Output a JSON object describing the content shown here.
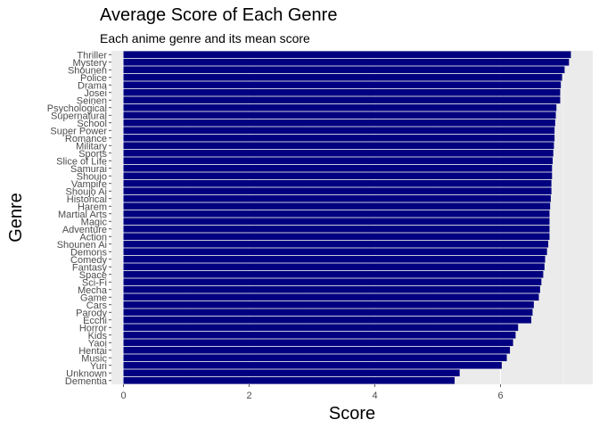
{
  "chart_data": {
    "type": "bar",
    "orientation": "horizontal",
    "title": "Average Score of Each Genre",
    "subtitle": "Each anime genre and its mean score",
    "xlabel": "Score",
    "ylabel": "Genre",
    "xlim": [
      0,
      7.4
    ],
    "xticks": [
      0,
      2,
      4,
      6
    ],
    "grid": true,
    "bar_color": "#000080",
    "panel_color": "#ebebeb",
    "categories": [
      "Thriller",
      "Mystery",
      "Shounen",
      "Police",
      "Drama",
      "Josei",
      "Seinen",
      "Psychological",
      "Supernatural",
      "School",
      "Super Power",
      "Romance",
      "Military",
      "Sports",
      "Slice of Life",
      "Samurai",
      "Shoujo",
      "Vampire",
      "Shoujo Ai",
      "Historical",
      "Harem",
      "Martial Arts",
      "Magic",
      "Adventure",
      "Action",
      "Shounen Ai",
      "Demons",
      "Comedy",
      "Fantasy",
      "Space",
      "Sci-Fi",
      "Mecha",
      "Game",
      "Cars",
      "Parody",
      "Ecchi",
      "Horror",
      "Kids",
      "Yaoi",
      "Hentai",
      "Music",
      "Yuri",
      "Unknown",
      "Dementia"
    ],
    "values": [
      7.12,
      7.09,
      7.02,
      6.98,
      6.96,
      6.95,
      6.95,
      6.89,
      6.88,
      6.87,
      6.86,
      6.86,
      6.85,
      6.84,
      6.83,
      6.82,
      6.82,
      6.81,
      6.81,
      6.8,
      6.79,
      6.78,
      6.78,
      6.78,
      6.78,
      6.76,
      6.74,
      6.71,
      6.7,
      6.68,
      6.65,
      6.63,
      6.61,
      6.53,
      6.51,
      6.49,
      6.28,
      6.24,
      6.2,
      6.15,
      6.1,
      6.02,
      5.35,
      5.27
    ]
  }
}
